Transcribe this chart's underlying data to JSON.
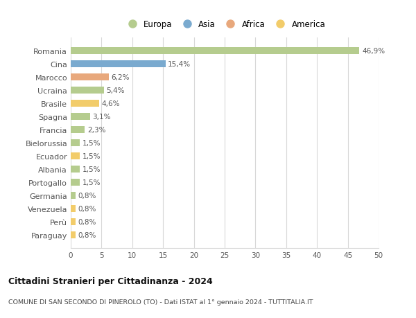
{
  "countries": [
    "Romania",
    "Cina",
    "Marocco",
    "Ucraina",
    "Brasile",
    "Spagna",
    "Francia",
    "Bielorussia",
    "Ecuador",
    "Albania",
    "Portogallo",
    "Germania",
    "Venezuela",
    "Perù",
    "Paraguay"
  ],
  "values": [
    46.9,
    15.4,
    6.2,
    5.4,
    4.6,
    3.1,
    2.3,
    1.5,
    1.5,
    1.5,
    1.5,
    0.8,
    0.8,
    0.8,
    0.8
  ],
  "labels": [
    "46,9%",
    "15,4%",
    "6,2%",
    "5,4%",
    "4,6%",
    "3,1%",
    "2,3%",
    "1,5%",
    "1,5%",
    "1,5%",
    "1,5%",
    "0,8%",
    "0,8%",
    "0,8%",
    "0,8%"
  ],
  "continents": [
    "Europa",
    "Asia",
    "Africa",
    "Europa",
    "America",
    "Europa",
    "Europa",
    "Europa",
    "America",
    "Europa",
    "Europa",
    "Europa",
    "America",
    "America",
    "America"
  ],
  "colors": {
    "Europa": "#b5cc8e",
    "Asia": "#7aaacf",
    "Africa": "#e8a87c",
    "America": "#f2cc6a"
  },
  "legend_order": [
    "Europa",
    "Asia",
    "Africa",
    "America"
  ],
  "xlim": [
    0,
    50
  ],
  "xticks": [
    0,
    5,
    10,
    15,
    20,
    25,
    30,
    35,
    40,
    45,
    50
  ],
  "title": "Cittadini Stranieri per Cittadinanza - 2024",
  "subtitle": "COMUNE DI SAN SECONDO DI PINEROLO (TO) - Dati ISTAT al 1° gennaio 2024 - TUTTITALIA.IT",
  "bg_color": "#ffffff",
  "grid_color": "#d8d8d8",
  "bar_height": 0.55
}
